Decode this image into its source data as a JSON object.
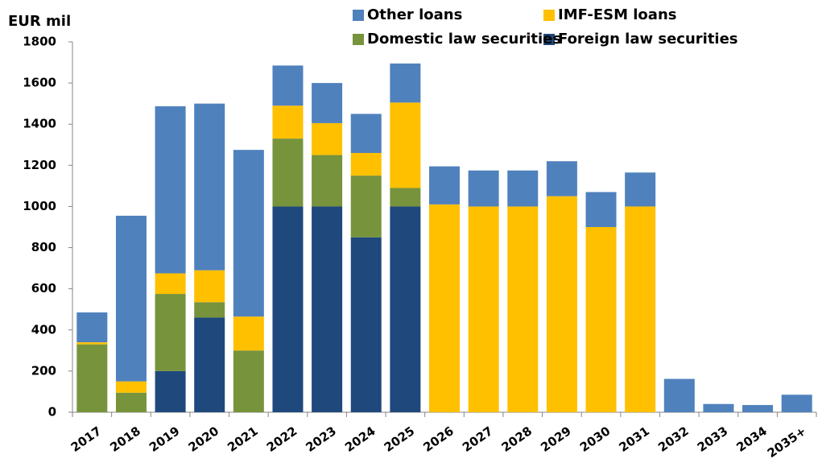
{
  "chart_data": {
    "type": "stacked_bar",
    "y_label": "EUR mil",
    "categories": [
      "2017",
      "2018",
      "2019",
      "2020",
      "2021",
      "2022",
      "2023",
      "2024",
      "2025",
      "2026",
      "2027",
      "2028",
      "2029",
      "2030",
      "2031",
      "2032",
      "2033",
      "2034",
      "2035+"
    ],
    "series": [
      {
        "name": "Foreign law securities",
        "color": "#1f497d",
        "values": [
          0,
          0,
          200,
          460,
          0,
          1000,
          1000,
          850,
          1000,
          0,
          0,
          0,
          0,
          0,
          0,
          0,
          0,
          0,
          0
        ]
      },
      {
        "name": "Domestic law securities",
        "color": "#77933c",
        "values": [
          330,
          95,
          375,
          75,
          300,
          330,
          250,
          300,
          90,
          0,
          0,
          0,
          0,
          0,
          0,
          0,
          0,
          0,
          0
        ]
      },
      {
        "name": "IMF-ESM loans",
        "color": "#ffc000",
        "values": [
          10,
          55,
          100,
          155,
          165,
          160,
          155,
          110,
          415,
          1010,
          1000,
          1000,
          1050,
          900,
          1000,
          0,
          0,
          0,
          0
        ]
      },
      {
        "name": "Other loans",
        "color": "#4f81bd",
        "values": [
          145,
          805,
          812,
          810,
          810,
          195,
          195,
          190,
          190,
          185,
          175,
          175,
          170,
          170,
          165,
          162,
          40,
          35,
          85
        ]
      }
    ],
    "ylim": [
      0,
      1800
    ],
    "yticks": [
      0,
      200,
      400,
      600,
      800,
      1000,
      1200,
      1400,
      1600,
      1800
    ]
  }
}
